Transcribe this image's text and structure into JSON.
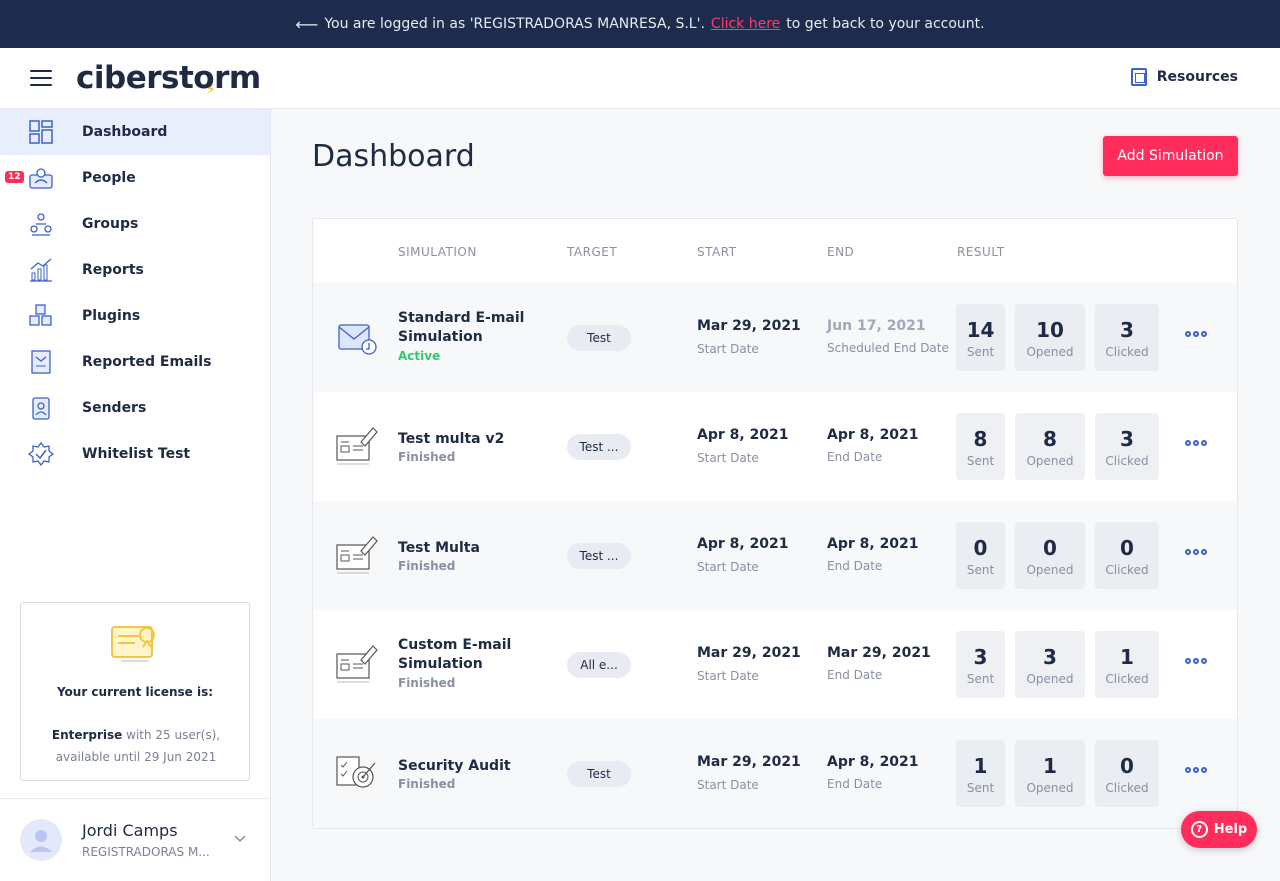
{
  "banner": {
    "prefix": "You are logged in as 'REGISTRADORAS MANRESA, S.L'.",
    "link": "Click here",
    "suffix": "to get back to your account."
  },
  "header": {
    "logo_text": "ciberstorm",
    "resources_label": "Resources"
  },
  "sidebar": {
    "items": [
      {
        "label": "Dashboard",
        "icon": "dashboard-icon",
        "active": true
      },
      {
        "label": "People",
        "icon": "people-icon",
        "badge": "12"
      },
      {
        "label": "Groups",
        "icon": "groups-icon"
      },
      {
        "label": "Reports",
        "icon": "reports-icon"
      },
      {
        "label": "Plugins",
        "icon": "plugins-icon"
      },
      {
        "label": "Reported Emails",
        "icon": "reported-emails-icon"
      },
      {
        "label": "Senders",
        "icon": "senders-icon"
      },
      {
        "label": "Whitelist Test",
        "icon": "whitelist-icon"
      }
    ],
    "license": {
      "title": "Your current license is:",
      "plan": "Enterprise",
      "detail": "with 25 user(s), available until 29 Jun 2021"
    },
    "user": {
      "name": "Jordi Camps",
      "org": "REGISTRADORAS M..."
    }
  },
  "main": {
    "title": "Dashboard",
    "add_button": "Add Simulation",
    "columns": [
      "SIMULATION",
      "TARGET",
      "START",
      "END",
      "RESULT"
    ],
    "rows": [
      {
        "name": "Standard E-mail Simulation",
        "status": "Active",
        "target": "Test",
        "start": "Mar 29, 2021",
        "start_label": "Start Date",
        "end": "Jun 17, 2021",
        "end_label": "Scheduled End Date",
        "sent": "14",
        "opened": "10",
        "clicked": "3"
      },
      {
        "name": "Test multa v2",
        "status": "Finished",
        "target": "Test ...",
        "start": "Apr 8, 2021",
        "start_label": "Start Date",
        "end": "Apr 8, 2021",
        "end_label": "End Date",
        "sent": "8",
        "opened": "8",
        "clicked": "3"
      },
      {
        "name": "Test Multa",
        "status": "Finished",
        "target": "Test ...",
        "start": "Apr 8, 2021",
        "start_label": "Start Date",
        "end": "Apr 8, 2021",
        "end_label": "End Date",
        "sent": "0",
        "opened": "0",
        "clicked": "0"
      },
      {
        "name": "Custom E-mail Simulation",
        "status": "Finished",
        "target": "All e...",
        "start": "Mar 29, 2021",
        "start_label": "Start Date",
        "end": "Mar 29, 2021",
        "end_label": "End Date",
        "sent": "3",
        "opened": "3",
        "clicked": "1"
      },
      {
        "name": "Security Audit",
        "status": "Finished",
        "target": "Test",
        "start": "Mar 29, 2021",
        "start_label": "Start Date",
        "end": "Apr 8, 2021",
        "end_label": "End Date",
        "sent": "1",
        "opened": "1",
        "clicked": "0"
      }
    ],
    "stat_labels": {
      "sent": "Sent",
      "opened": "Opened",
      "clicked": "Clicked"
    }
  },
  "help": {
    "label": "Help"
  },
  "colors": {
    "accent": "#ff2d5b",
    "navy": "#1d2b4c",
    "active_bg": "#e9eefc",
    "link_blue": "#3b62c9",
    "active_green": "#2ecc71"
  }
}
